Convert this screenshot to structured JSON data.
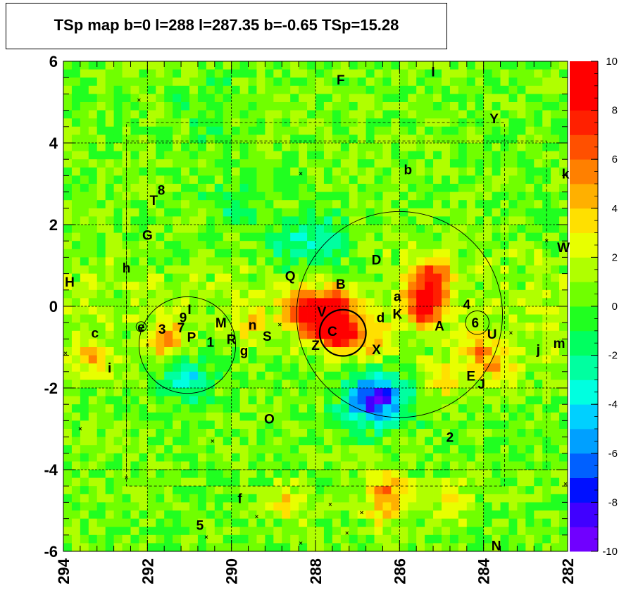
{
  "chart_data": {
    "type": "heatmap",
    "title": "TSp map b=0 l=288 l=287.35 b=-0.65 TSp=15.28",
    "xlabel": "",
    "ylabel": "",
    "xlim": [
      294,
      282
    ],
    "ylim": [
      -6,
      6
    ],
    "x_ticks": [
      "294",
      "292",
      "290",
      "288",
      "286",
      "284",
      "282"
    ],
    "y_ticks": [
      "6",
      "4",
      "2",
      "0",
      "-2",
      "-4",
      "-6"
    ],
    "colorbar": {
      "range": [
        -10,
        10
      ],
      "ticks": [
        "10",
        "8",
        "6",
        "4",
        "2",
        "0",
        "-2",
        "-4",
        "-6",
        "-8",
        "-10"
      ],
      "colors": [
        "#7000ff",
        "#4000ff",
        "#0010ff",
        "#0060ff",
        "#00a0ff",
        "#00d0ff",
        "#00ffe0",
        "#00ffa0",
        "#00ff60",
        "#20ff20",
        "#70ff00",
        "#b0ff00",
        "#e8ff00",
        "#ffe000",
        "#ffb000",
        "#ff8000",
        "#ff5000",
        "#ff2000",
        "#ff0000",
        "#ff0000"
      ]
    },
    "grid": true,
    "background_level": 0.5,
    "hotspots": [
      {
        "l": 287.35,
        "b": -0.65,
        "peak": 10.5
      },
      {
        "l": 287.55,
        "b": 0.05,
        "peak": 8
      },
      {
        "l": 285.4,
        "b": 0.0,
        "peak": 10
      },
      {
        "l": 285.25,
        "b": 0.7,
        "peak": 8
      },
      {
        "l": 288.3,
        "b": -0.05,
        "peak": 7
      },
      {
        "l": 287.95,
        "b": -0.45,
        "peak": 7
      },
      {
        "l": 291.5,
        "b": -0.85,
        "peak": 5
      },
      {
        "l": 286.6,
        "b": -0.9,
        "peak": 3
      },
      {
        "l": 293.3,
        "b": -1.3,
        "peak": 4
      },
      {
        "l": 284.2,
        "b": -1.05,
        "peak": 4
      },
      {
        "l": 283.7,
        "b": -1.45,
        "peak": 4
      },
      {
        "l": 285.0,
        "b": -1.8,
        "peak": 3
      },
      {
        "l": 286.3,
        "b": -4.4,
        "peak": 4
      },
      {
        "l": 286.3,
        "b": -4.9,
        "peak": 4
      },
      {
        "l": 284.7,
        "b": -4.8,
        "peak": 3
      },
      {
        "l": 289.5,
        "b": -0.4,
        "peak": 3
      },
      {
        "l": 288.7,
        "b": -4.8,
        "peak": 3
      }
    ],
    "deficits": [
      {
        "l": 286.8,
        "b": -2.3,
        "depth": -7
      },
      {
        "l": 286.25,
        "b": -2.25,
        "depth": -6
      },
      {
        "l": 287.8,
        "b": 1.6,
        "depth": -4
      },
      {
        "l": 288.7,
        "b": 1.45,
        "depth": -3
      },
      {
        "l": 291.05,
        "b": -1.75,
        "depth": -5
      },
      {
        "l": 289.9,
        "b": 2.4,
        "depth": -2
      },
      {
        "l": 290.5,
        "b": 4.8,
        "depth": -2
      }
    ],
    "circles": [
      {
        "l": 287.35,
        "b": -0.65,
        "r": 0.55,
        "thick": true
      },
      {
        "l": 286.0,
        "b": -0.2,
        "r": 2.45,
        "thick": false
      },
      {
        "l": 291.05,
        "b": -0.95,
        "r": 1.15,
        "thick": false
      },
      {
        "l": 284.15,
        "b": -0.4,
        "r": 0.28,
        "thick": false
      },
      {
        "l": 292.15,
        "b": -0.5,
        "r": 0.12,
        "thick": false
      }
    ],
    "regions": [
      {
        "l1": 292.5,
        "l2": 283.5,
        "b1": 4.5,
        "b2": -4.4
      },
      {
        "l1": 292.5,
        "l2": 282.5,
        "b1": 4.05,
        "b2": -4.0
      }
    ],
    "markers": [
      {
        "l": 293.95,
        "b": -1.15
      },
      {
        "l": 293.6,
        "b": -3.0
      },
      {
        "l": 292.5,
        "b": -4.2
      },
      {
        "l": 292.2,
        "b": 5.05
      },
      {
        "l": 289.4,
        "b": -5.15
      },
      {
        "l": 290.6,
        "b": -5.65
      },
      {
        "l": 290.45,
        "b": -3.3
      },
      {
        "l": 288.35,
        "b": 3.25
      },
      {
        "l": 288.35,
        "b": -5.8
      },
      {
        "l": 287.65,
        "b": -4.85
      },
      {
        "l": 287.25,
        "b": -5.55
      },
      {
        "l": 286.9,
        "b": -5.05
      },
      {
        "l": 282.05,
        "b": -4.35
      },
      {
        "l": 282.5,
        "b": 1.6
      },
      {
        "l": 283.35,
        "b": -0.65
      },
      {
        "l": 288.85,
        "b": -0.45
      },
      {
        "l": 292.0,
        "b": -0.95
      },
      {
        "l": 292.15,
        "b": -0.55
      }
    ],
    "source_labels": [
      {
        "text": "F",
        "l": 287.4,
        "b": 5.55
      },
      {
        "text": "I",
        "l": 285.2,
        "b": 5.75
      },
      {
        "text": "Y",
        "l": 283.75,
        "b": 4.6
      },
      {
        "text": "b",
        "l": 285.8,
        "b": 3.35
      },
      {
        "text": "k",
        "l": 282.05,
        "b": 3.25
      },
      {
        "text": "8",
        "l": 291.67,
        "b": 2.85
      },
      {
        "text": "T",
        "l": 291.85,
        "b": 2.6
      },
      {
        "text": "G",
        "l": 292.0,
        "b": 1.75
      },
      {
        "text": "W",
        "l": 282.1,
        "b": 1.45
      },
      {
        "text": "h",
        "l": 292.5,
        "b": 0.95
      },
      {
        "text": "D",
        "l": 286.55,
        "b": 1.15
      },
      {
        "text": "Q",
        "l": 288.6,
        "b": 0.75
      },
      {
        "text": "H",
        "l": 293.85,
        "b": 0.6
      },
      {
        "text": "B",
        "l": 287.4,
        "b": 0.55
      },
      {
        "text": "a",
        "l": 286.05,
        "b": 0.25
      },
      {
        "text": "4",
        "l": 284.4,
        "b": 0.05
      },
      {
        "text": "I",
        "l": 291.0,
        "b": -0.07
      },
      {
        "text": "9",
        "l": 291.15,
        "b": -0.27
      },
      {
        "text": "V",
        "l": 287.85,
        "b": -0.13
      },
      {
        "text": "K",
        "l": 286.05,
        "b": -0.18
      },
      {
        "text": "d",
        "l": 286.45,
        "b": -0.27
      },
      {
        "text": "M",
        "l": 290.25,
        "b": -0.4
      },
      {
        "text": "n",
        "l": 289.5,
        "b": -0.45
      },
      {
        "text": "6",
        "l": 284.2,
        "b": -0.4
      },
      {
        "text": "e",
        "l": 292.15,
        "b": -0.5
      },
      {
        "text": "3",
        "l": 291.65,
        "b": -0.55
      },
      {
        "text": "7",
        "l": 291.2,
        "b": -0.52
      },
      {
        "text": "A",
        "l": 285.05,
        "b": -0.47
      },
      {
        "text": "C",
        "l": 287.6,
        "b": -0.6
      },
      {
        "text": "c",
        "l": 293.25,
        "b": -0.65
      },
      {
        "text": "U",
        "l": 283.8,
        "b": -0.67
      },
      {
        "text": "S",
        "l": 289.15,
        "b": -0.72
      },
      {
        "text": "P",
        "l": 290.95,
        "b": -0.75
      },
      {
        "text": "R",
        "l": 290.0,
        "b": -0.8
      },
      {
        "text": "1",
        "l": 290.5,
        "b": -0.87
      },
      {
        "text": "m",
        "l": 282.2,
        "b": -0.9
      },
      {
        "text": "Z",
        "l": 288.0,
        "b": -0.95
      },
      {
        "text": "g",
        "l": 289.7,
        "b": -1.08
      },
      {
        "text": "j",
        "l": 282.7,
        "b": -1.05
      },
      {
        "text": "X",
        "l": 286.55,
        "b": -1.05
      },
      {
        "text": "i",
        "l": 292.9,
        "b": -1.5
      },
      {
        "text": "E",
        "l": 284.3,
        "b": -1.7
      },
      {
        "text": "J",
        "l": 284.05,
        "b": -1.9
      },
      {
        "text": "O",
        "l": 289.1,
        "b": -2.75
      },
      {
        "text": "2",
        "l": 284.8,
        "b": -3.2
      },
      {
        "text": "f",
        "l": 289.8,
        "b": -4.7
      },
      {
        "text": "5",
        "l": 290.75,
        "b": -5.35
      },
      {
        "text": "N",
        "l": 283.7,
        "b": -5.85
      }
    ]
  }
}
